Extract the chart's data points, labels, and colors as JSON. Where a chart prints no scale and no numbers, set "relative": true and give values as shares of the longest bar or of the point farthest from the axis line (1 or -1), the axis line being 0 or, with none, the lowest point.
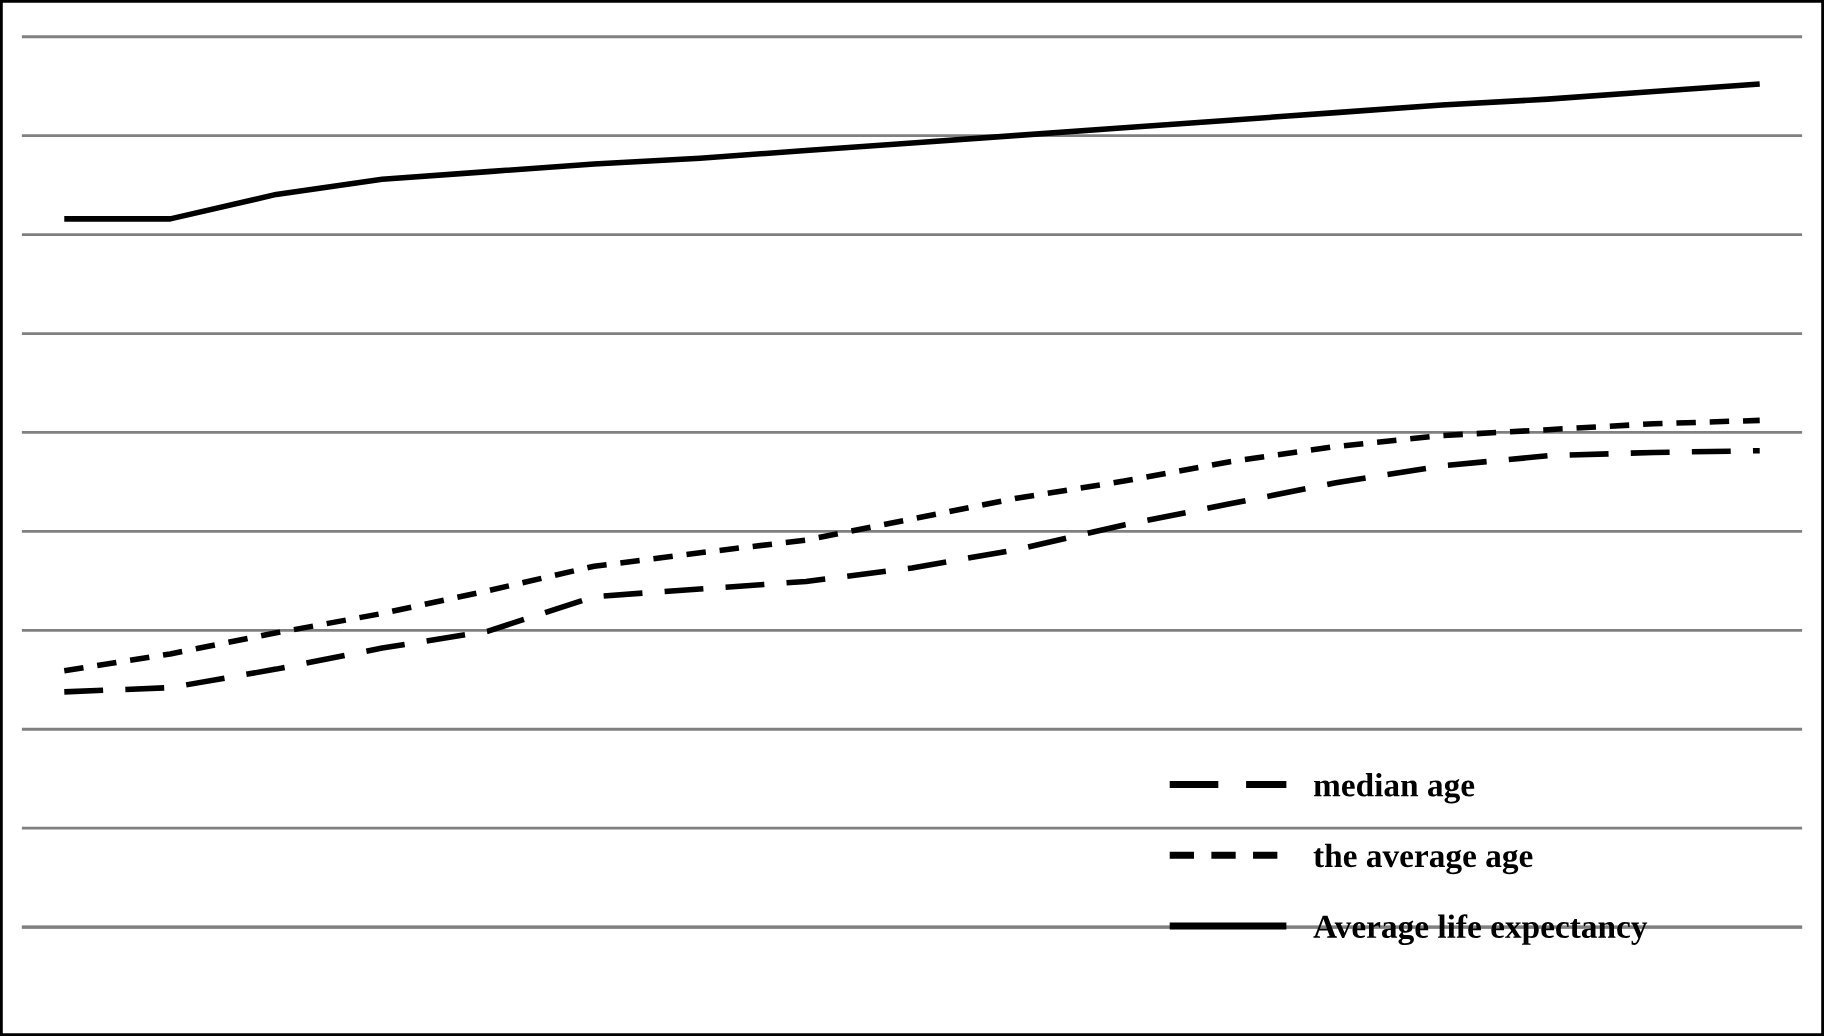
{
  "chart_data": {
    "type": "line",
    "relative": true,
    "grid": "y",
    "legend": "bottom right",
    "categories": [
      null,
      null,
      null,
      null,
      null,
      null,
      null,
      null,
      null,
      null,
      null,
      null,
      null,
      null,
      null,
      null,
      null
    ],
    "series": [
      {
        "name": "median age",
        "color": "#000000",
        "line_style": "dashed",
        "values": [
          0.279,
          0.284,
          0.306,
          0.331,
          0.351,
          0.392,
          0.401,
          0.41,
          0.426,
          0.448,
          0.477,
          0.502,
          0.527,
          0.547,
          0.559,
          0.563,
          0.565
        ]
      },
      {
        "name": "the average age",
        "color": "#000000",
        "line_style": "dotted",
        "values": [
          0.304,
          0.324,
          0.349,
          0.372,
          0.399,
          0.428,
          0.444,
          0.459,
          0.484,
          0.509,
          0.529,
          0.552,
          0.57,
          0.583,
          0.59,
          0.597,
          0.601
        ]
      },
      {
        "name": "Average life expectancy",
        "color": "#000000",
        "line_style": "solid",
        "values": [
          0.84,
          0.84,
          0.869,
          0.887,
          0.896,
          0.905,
          0.912,
          0.921,
          0.93,
          0.939,
          0.948,
          0.957,
          0.966,
          0.975,
          0.982,
          0.991,
          1
        ]
      }
    ]
  }
}
